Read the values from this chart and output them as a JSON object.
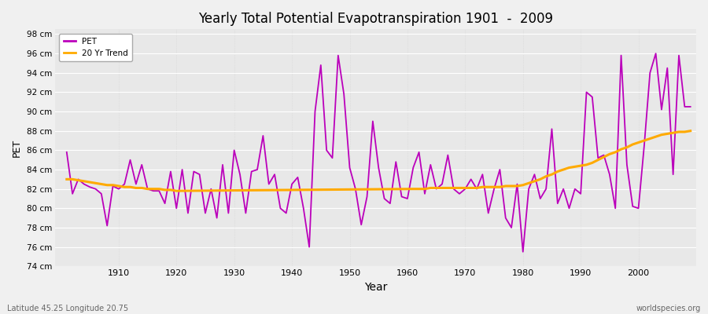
{
  "title": "Yearly Total Potential Evapotranspiration 1901  -  2009",
  "xlabel": "Year",
  "ylabel": "PET",
  "footer_left": "Latitude 45.25 Longitude 20.75",
  "footer_right": "worldspecies.org",
  "background_color": "#f0f0f0",
  "plot_bg_color": "#e8e8e8",
  "grid_color": "#d8d8d8",
  "pet_color": "#bb00bb",
  "trend_color": "#ffaa00",
  "ylim": [
    74,
    98.5
  ],
  "yticks": [
    74,
    76,
    78,
    80,
    82,
    84,
    86,
    88,
    90,
    92,
    94,
    96,
    98
  ],
  "xlim": [
    1899,
    2010
  ],
  "xticks": [
    1910,
    1920,
    1930,
    1940,
    1950,
    1960,
    1970,
    1980,
    1990,
    2000
  ],
  "years": [
    1901,
    1902,
    1903,
    1904,
    1905,
    1906,
    1907,
    1908,
    1909,
    1910,
    1911,
    1912,
    1913,
    1914,
    1915,
    1916,
    1917,
    1918,
    1919,
    1920,
    1921,
    1922,
    1923,
    1924,
    1925,
    1926,
    1927,
    1928,
    1929,
    1930,
    1931,
    1932,
    1933,
    1934,
    1935,
    1936,
    1937,
    1938,
    1939,
    1940,
    1941,
    1942,
    1943,
    1944,
    1945,
    1946,
    1947,
    1948,
    1949,
    1950,
    1951,
    1952,
    1953,
    1954,
    1955,
    1956,
    1957,
    1958,
    1959,
    1960,
    1961,
    1962,
    1963,
    1964,
    1965,
    1966,
    1967,
    1968,
    1969,
    1970,
    1971,
    1972,
    1973,
    1974,
    1975,
    1976,
    1977,
    1978,
    1979,
    1980,
    1981,
    1982,
    1983,
    1984,
    1985,
    1986,
    1987,
    1988,
    1989,
    1990,
    1991,
    1992,
    1993,
    1994,
    1995,
    1996,
    1997,
    1998,
    1999,
    2000,
    2001,
    2002,
    2003,
    2004,
    2005,
    2006,
    2007,
    2008,
    2009
  ],
  "pet_values": [
    85.8,
    81.5,
    83.0,
    82.5,
    82.2,
    82.0,
    81.5,
    78.2,
    82.3,
    82.0,
    82.5,
    85.0,
    82.5,
    84.5,
    82.0,
    81.8,
    81.8,
    80.5,
    83.8,
    80.0,
    84.0,
    79.5,
    83.8,
    83.5,
    79.5,
    82.0,
    79.0,
    84.5,
    79.5,
    86.0,
    83.5,
    79.5,
    83.8,
    84.0,
    87.5,
    82.5,
    83.5,
    80.0,
    79.5,
    82.5,
    83.2,
    80.0,
    76.0,
    90.0,
    94.8,
    86.0,
    85.2,
    95.8,
    91.8,
    84.2,
    82.0,
    78.3,
    81.2,
    89.0,
    84.2,
    81.0,
    80.5,
    84.8,
    81.2,
    81.0,
    84.2,
    85.8,
    81.5,
    84.5,
    82.0,
    82.5,
    85.5,
    82.0,
    81.5,
    82.0,
    83.0,
    82.0,
    83.5,
    79.5,
    82.0,
    84.0,
    79.0,
    78.0,
    82.5,
    75.5,
    82.0,
    83.5,
    81.0,
    82.0,
    88.2,
    80.5,
    82.0,
    80.0,
    82.0,
    81.5,
    92.0,
    91.5,
    85.2,
    85.5,
    83.5,
    80.0,
    95.8,
    84.5,
    80.2,
    80.0,
    86.5,
    94.0,
    96.0,
    90.2,
    94.5,
    83.5,
    95.8,
    90.5,
    90.5
  ],
  "trend_years": [
    1901,
    1902,
    1903,
    1904,
    1905,
    1906,
    1907,
    1908,
    1909,
    1910,
    1911,
    1912,
    1913,
    1914,
    1915,
    1916,
    1917,
    1918,
    1919,
    1920,
    1961,
    1962,
    1963,
    1964,
    1965,
    1966,
    1967,
    1968,
    1969,
    1970,
    1971,
    1972,
    1973,
    1974,
    1975,
    1976,
    1977,
    1978,
    1979,
    1980,
    1981,
    1982,
    1983,
    1984,
    1985,
    1986,
    1987,
    1988,
    1989,
    1990,
    1991,
    1992,
    1993,
    1994,
    1995,
    1996,
    1997,
    1998,
    1999,
    2000,
    2001,
    2002,
    2003,
    2004,
    2005,
    2006,
    2007,
    2008,
    2009
  ],
  "trend_values": [
    83.0,
    83.0,
    82.9,
    82.8,
    82.7,
    82.6,
    82.5,
    82.4,
    82.4,
    82.3,
    82.2,
    82.2,
    82.1,
    82.1,
    82.0,
    82.0,
    82.0,
    81.9,
    81.9,
    81.8,
    82.0,
    82.0,
    82.0,
    82.1,
    82.1,
    82.1,
    82.1,
    82.1,
    82.1,
    82.1,
    82.1,
    82.1,
    82.2,
    82.2,
    82.2,
    82.2,
    82.3,
    82.3,
    82.3,
    82.4,
    82.6,
    82.8,
    83.0,
    83.3,
    83.5,
    83.8,
    84.0,
    84.2,
    84.3,
    84.4,
    84.5,
    84.7,
    85.0,
    85.3,
    85.6,
    85.8,
    86.1,
    86.3,
    86.6,
    86.8,
    87.0,
    87.2,
    87.4,
    87.6,
    87.7,
    87.8,
    87.9,
    87.9,
    88.0
  ]
}
